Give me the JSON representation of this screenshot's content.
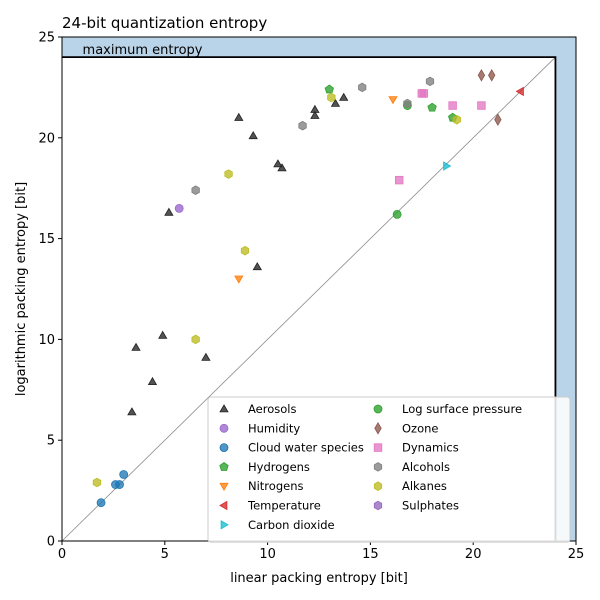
{
  "chart_data": {
    "type": "scatter",
    "title": "24-bit quantization entropy",
    "xlabel": "linear packing entropy [bit]",
    "ylabel": "logarithmic packing entropy [bit]",
    "xlim": [
      0,
      25
    ],
    "ylim": [
      0,
      25
    ],
    "xticks": [
      0,
      5,
      10,
      15,
      20,
      25
    ],
    "yticks": [
      0,
      5,
      10,
      15,
      20,
      25
    ],
    "grid": false,
    "legend_placement": "bottom-right",
    "legend_columns": 2,
    "max_entropy": 24,
    "max_entropy_label": "maximum entropy",
    "max_entropy_fill": "#b9d3e8",
    "diagonal_color": "#8c8c8c",
    "series": [
      {
        "name": "Aerosols",
        "marker": "triangle-up",
        "color": "#222222",
        "points": [
          [
            3.4,
            6.4
          ],
          [
            3.6,
            9.6
          ],
          [
            4.4,
            7.9
          ],
          [
            4.9,
            10.2
          ],
          [
            5.2,
            16.3
          ],
          [
            7.0,
            9.1
          ],
          [
            8.6,
            21.0
          ],
          [
            9.3,
            20.1
          ],
          [
            9.5,
            13.6
          ],
          [
            10.5,
            18.7
          ],
          [
            10.7,
            18.5
          ],
          [
            12.3,
            21.4
          ],
          [
            12.3,
            21.1
          ],
          [
            13.3,
            21.7
          ],
          [
            13.7,
            22.0
          ]
        ]
      },
      {
        "name": "Humidity",
        "marker": "circle",
        "color": "#9966cc",
        "points": [
          [
            5.7,
            16.5
          ]
        ]
      },
      {
        "name": "Cloud water species",
        "marker": "circle",
        "color": "#1f77b4",
        "points": [
          [
            1.9,
            1.9
          ],
          [
            2.6,
            2.8
          ],
          [
            2.8,
            2.8
          ],
          [
            3.0,
            3.3
          ]
        ]
      },
      {
        "name": "Hydrogens",
        "marker": "pentagon",
        "color": "#2ca02c",
        "points": [
          [
            13.0,
            22.4
          ],
          [
            18.0,
            21.5
          ],
          [
            19.0,
            21.0
          ]
        ]
      },
      {
        "name": "Nitrogens",
        "marker": "triangle-down",
        "color": "#ff7f0e",
        "points": [
          [
            8.6,
            13.0
          ],
          [
            16.1,
            21.9
          ]
        ]
      },
      {
        "name": "Temperature",
        "marker": "triangle-left",
        "color": "#d62728",
        "points": [
          [
            22.3,
            22.3
          ]
        ]
      },
      {
        "name": "Carbon dioxide",
        "marker": "triangle-right",
        "color": "#17becf",
        "points": [
          [
            18.7,
            18.6
          ]
        ]
      },
      {
        "name": "Log surface pressure",
        "marker": "circle",
        "color": "#2ca02c",
        "points": [
          [
            16.3,
            16.2
          ],
          [
            16.8,
            21.6
          ]
        ]
      },
      {
        "name": "Ozone",
        "marker": "thin-diamond",
        "color": "#8c564b",
        "points": [
          [
            20.4,
            23.1
          ],
          [
            20.9,
            23.1
          ],
          [
            21.2,
            20.9
          ]
        ]
      },
      {
        "name": "Dynamics",
        "marker": "square",
        "color": "#e377c2",
        "points": [
          [
            16.4,
            17.9
          ],
          [
            17.5,
            22.2
          ],
          [
            17.6,
            22.2
          ],
          [
            19.0,
            21.6
          ],
          [
            20.4,
            21.6
          ]
        ]
      },
      {
        "name": "Alcohols",
        "marker": "hexagon",
        "color": "#7f7f7f",
        "points": [
          [
            6.5,
            17.4
          ],
          [
            11.7,
            20.6
          ],
          [
            14.6,
            22.5
          ],
          [
            16.8,
            21.7
          ],
          [
            17.9,
            22.8
          ]
        ]
      },
      {
        "name": "Alkanes",
        "marker": "hexagon",
        "color": "#bcbd22",
        "points": [
          [
            1.7,
            2.9
          ],
          [
            6.5,
            10.0
          ],
          [
            8.1,
            18.2
          ],
          [
            8.9,
            14.4
          ],
          [
            13.1,
            22.0
          ],
          [
            19.2,
            20.9
          ]
        ]
      },
      {
        "name": "Sulphates",
        "marker": "hexagon",
        "color": "#9467bd",
        "points": []
      }
    ]
  }
}
